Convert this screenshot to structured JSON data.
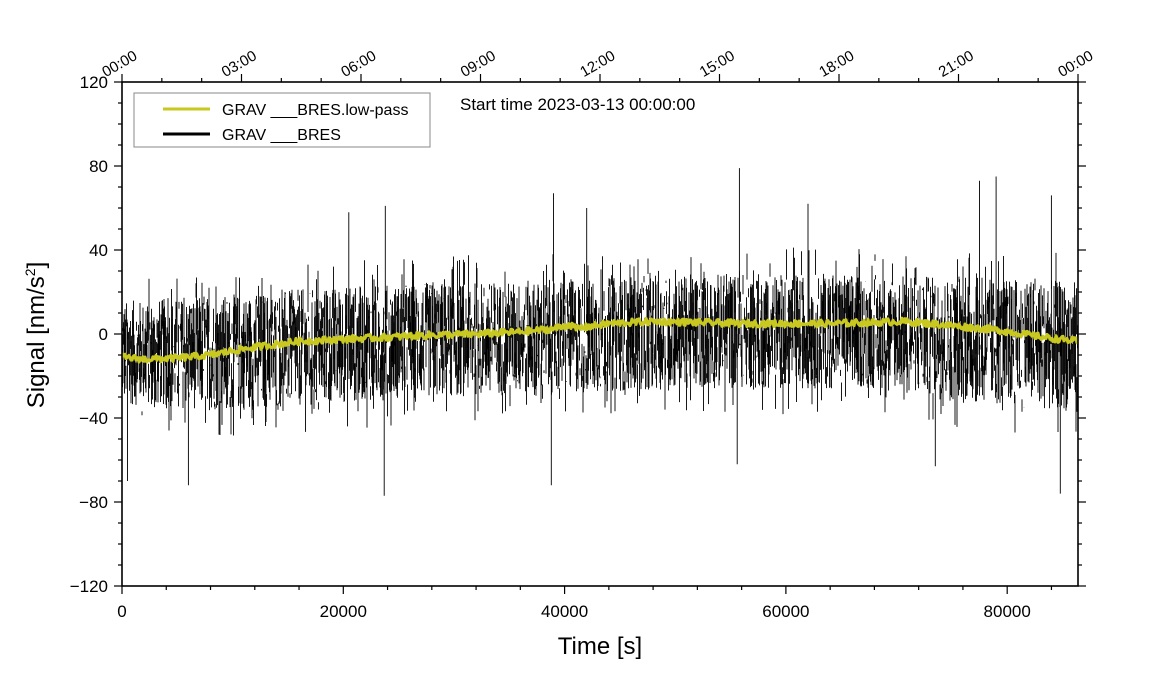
{
  "chart_data": {
    "type": "line",
    "title": "",
    "annotation": "Start time 2023-03-13 00:00:00",
    "xlabel": "Time [s]",
    "ylabel_main": "Signal [nm/s",
    "ylabel_sup": "2",
    "ylabel_end": "]",
    "xlim": [
      0,
      86400
    ],
    "ylim": [
      -120,
      120
    ],
    "x_ticks": [
      0,
      20000,
      40000,
      60000,
      80000
    ],
    "x_tick_labels": [
      "0",
      "20000",
      "40000",
      "60000",
      "80000"
    ],
    "y_ticks": [
      -120,
      -80,
      -40,
      0,
      40,
      80,
      120
    ],
    "y_tick_labels": [
      "−120",
      "−80",
      "−40",
      "0",
      "40",
      "80",
      "120"
    ],
    "top_axis": {
      "ticks": [
        0,
        10800,
        21600,
        32400,
        43200,
        54000,
        64800,
        75600,
        86400
      ],
      "labels": [
        "00:00",
        "03:00",
        "06:00",
        "09:00",
        "12:00",
        "15:00",
        "18:00",
        "21:00",
        "00:00"
      ]
    },
    "legend_position": "top-left",
    "series": [
      {
        "name": "GRAV ___BRES",
        "color": "#000000",
        "kind": "noise-envelope",
        "x": [
          0,
          5000,
          10000,
          15000,
          20000,
          25000,
          30000,
          35000,
          40000,
          45000,
          50000,
          55000,
          60000,
          65000,
          70000,
          75000,
          80000,
          86400
        ],
        "upper": [
          22,
          24,
          26,
          28,
          30,
          31,
          32,
          32,
          33,
          34,
          35,
          36,
          36,
          36,
          35,
          35,
          34,
          33
        ],
        "lower": [
          -40,
          -42,
          -44,
          -42,
          -40,
          -38,
          -37,
          -36,
          -36,
          -34,
          -33,
          -33,
          -33,
          -33,
          -33,
          -40,
          -42,
          -45
        ],
        "spike_max": [
          {
            "x": 20500,
            "y": 58
          },
          {
            "x": 23800,
            "y": 61
          },
          {
            "x": 39000,
            "y": 67
          },
          {
            "x": 42000,
            "y": 60
          },
          {
            "x": 55800,
            "y": 79
          },
          {
            "x": 62000,
            "y": 62
          },
          {
            "x": 77500,
            "y": 73
          },
          {
            "x": 79000,
            "y": 75
          },
          {
            "x": 84000,
            "y": 66
          }
        ],
        "spike_min": [
          {
            "x": 500,
            "y": -70
          },
          {
            "x": 6000,
            "y": -72
          },
          {
            "x": 23700,
            "y": -77
          },
          {
            "x": 38800,
            "y": -72
          },
          {
            "x": 55600,
            "y": -62
          },
          {
            "x": 73500,
            "y": -63
          },
          {
            "x": 84800,
            "y": -76
          }
        ]
      },
      {
        "name": "GRAV ___BRES.low-pass",
        "color": "#c8c820",
        "x": [
          0,
          2000,
          5000,
          8000,
          10000,
          13000,
          16000,
          20000,
          24000,
          28000,
          32000,
          36000,
          39000,
          40500,
          41000,
          44000,
          48000,
          52000,
          56000,
          60000,
          64000,
          68000,
          70500,
          73000,
          76000,
          79000,
          82000,
          84000,
          86400
        ],
        "values": [
          -11,
          -12,
          -11.5,
          -10,
          -8,
          -5.5,
          -3.5,
          -2.5,
          -1.5,
          -0.5,
          0,
          1,
          2.5,
          4.5,
          2.5,
          5,
          6,
          5.5,
          5,
          5,
          5,
          5.5,
          6,
          5,
          3.5,
          2,
          -0.5,
          -2,
          -3.5
        ]
      }
    ],
    "legend": [
      {
        "label": "GRAV ___BRES.low-pass",
        "color": "#c8c820"
      },
      {
        "label": "GRAV ___BRES",
        "color": "#000000"
      }
    ]
  }
}
